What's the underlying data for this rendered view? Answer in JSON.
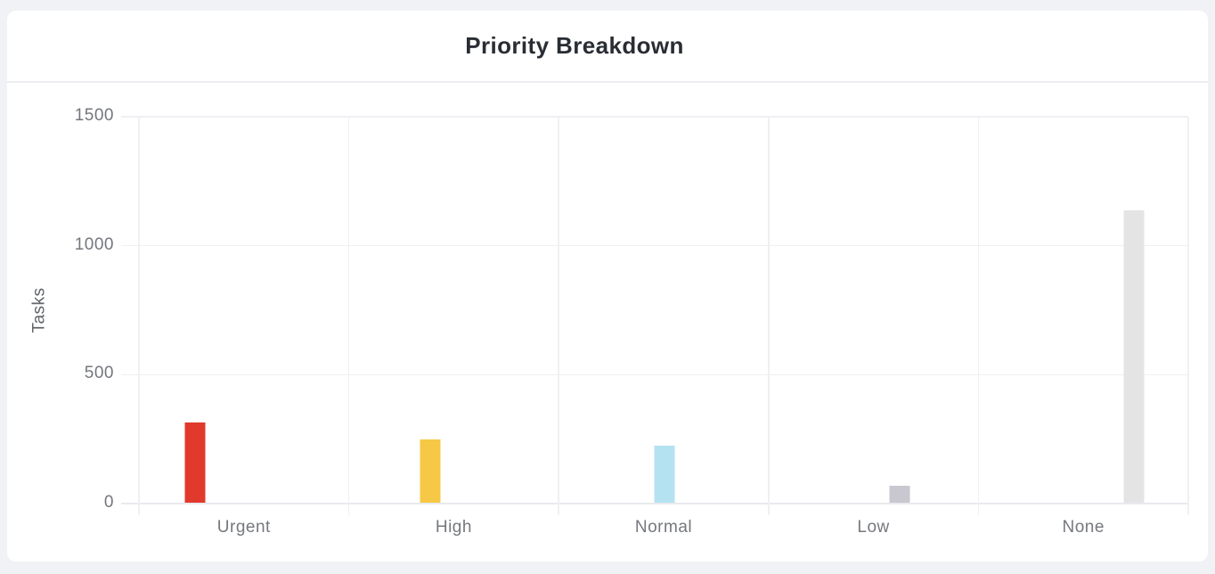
{
  "page": {
    "background_color": "#f1f2f6",
    "card_background": "#ffffff"
  },
  "chart_data": {
    "type": "bar",
    "title": "Priority Breakdown",
    "xlabel": "",
    "ylabel": "Tasks",
    "categories": [
      "Urgent",
      "High",
      "Normal",
      "Low",
      "None"
    ],
    "values": [
      310,
      245,
      220,
      65,
      1135
    ],
    "bar_colors": [
      "#e13a2c",
      "#f6c845",
      "#b5e2f0",
      "#c9c7d0",
      "#e4e4e5"
    ],
    "ylim": [
      0,
      1500
    ],
    "yticks": [
      0,
      500,
      1000,
      1500
    ],
    "grid": true,
    "legend_position": "none",
    "grid_color": "#f0f0f4",
    "axis_color": "#e9eaee",
    "tick_label_color": "#73767c",
    "title_color": "#292d34"
  }
}
